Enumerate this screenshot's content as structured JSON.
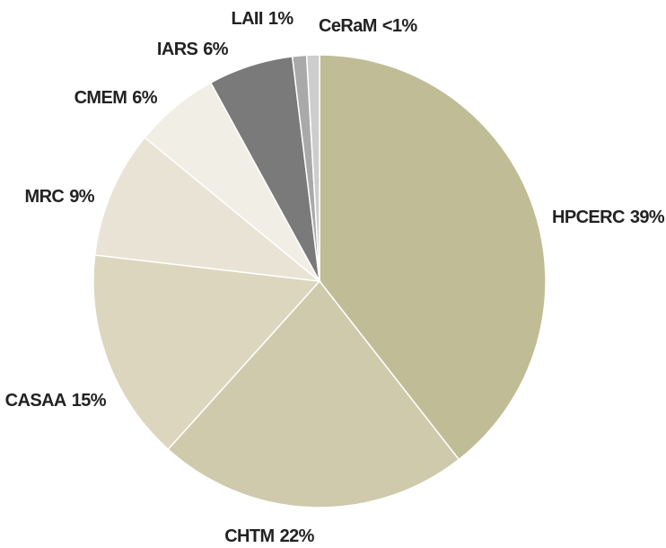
{
  "chart_data": {
    "type": "pie",
    "categories": [
      "HPCERC",
      "CHTM",
      "CASAA",
      "MRC",
      "CMEM",
      "IARS",
      "LAII",
      "CeRaM"
    ],
    "values": [
      39,
      22,
      15,
      9,
      6,
      6,
      1,
      0.9
    ],
    "value_labels": [
      "39%",
      "22%",
      "15%",
      "9%",
      "6%",
      "6%",
      "1%",
      "<1%"
    ],
    "colors": [
      "#c0bc96",
      "#cfcaac",
      "#dcd6bf",
      "#e9e3d5",
      "#f1eee6",
      "#7a7a7a",
      "#a9a9a9",
      "#cdcdcd"
    ]
  }
}
